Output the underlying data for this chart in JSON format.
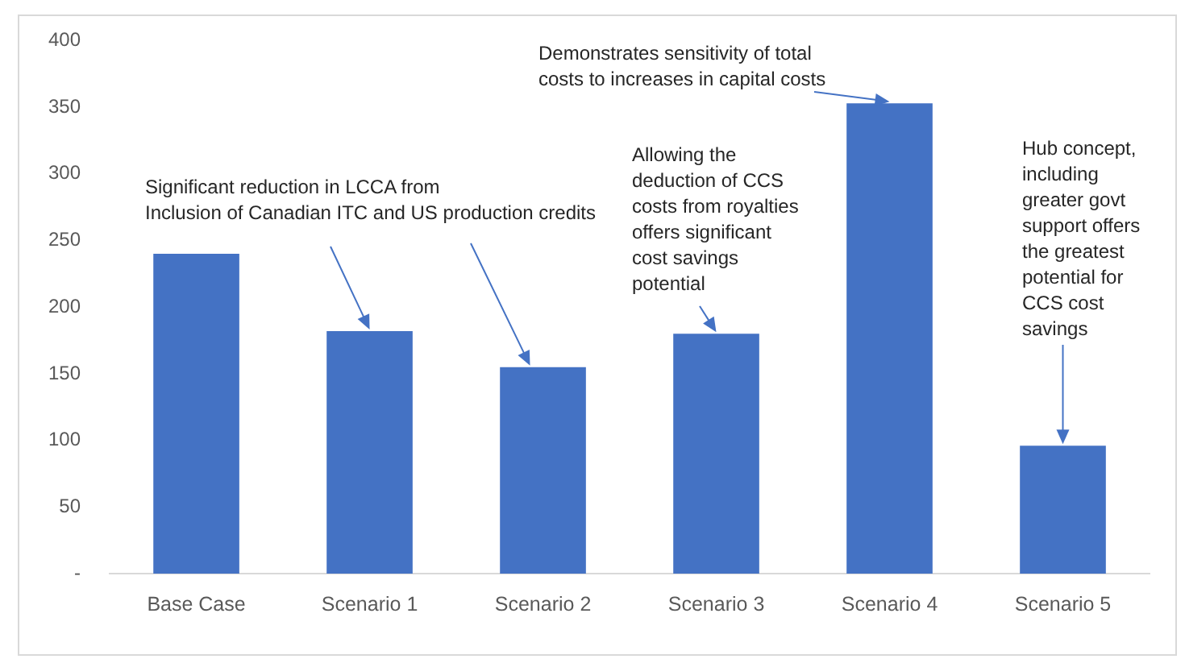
{
  "chart_data": {
    "type": "bar",
    "categories": [
      "Base Case",
      "Scenario 1",
      "Scenario 2",
      "Scenario 3",
      "Scenario 4",
      "Scenario 5"
    ],
    "values": [
      240,
      182,
      155,
      180,
      353,
      96
    ],
    "color": "#4472c4",
    "ylim": [
      0,
      400
    ],
    "yticks": [
      {
        "value": 0,
        "label": "-"
      },
      50,
      100,
      150,
      200,
      250,
      300,
      350,
      400
    ],
    "grid": false,
    "legend": false,
    "annotations": [
      {
        "text": "Significant reduction in LCCA from Inclusion of Canadian ITC and US production credits",
        "x": "Scenario 1",
        "y": 182
      },
      {
        "text": "Allowing the deduction of CCS costs from royalties offers significant cost savings potential",
        "x": "Scenario 3",
        "y": 180
      },
      {
        "text": "Demonstrates sensitivity of total costs to increases in capital costs",
        "x": "Scenario 4",
        "y": 353
      },
      {
        "text": "Hub concept, including greater govt support offers the greatest potential for CCS cost savings",
        "x": "Scenario 5",
        "y": 96
      }
    ]
  }
}
